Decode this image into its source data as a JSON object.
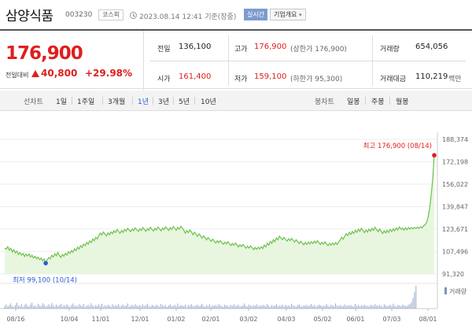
{
  "header": {
    "name": "삼양식품",
    "code": "003230",
    "market": "코스피",
    "datetime": "2023.08.14 12:41 기준(장중)",
    "realtime_label": "실시간",
    "company_label": "기업개요"
  },
  "price": {
    "current": "176,900",
    "change_label": "전일대비",
    "change": "40,800",
    "change_rate": "+29.98%"
  },
  "stats": {
    "prev_close": {
      "label": "전일",
      "value": "136,100"
    },
    "open": {
      "label": "시가",
      "value": "161,400"
    },
    "high": {
      "label": "고가",
      "value": "176,900",
      "sub": "(상한가 176,900)"
    },
    "low": {
      "label": "저가",
      "value": "159,100",
      "sub": "(하한가 95,300)"
    },
    "volume": {
      "label": "거래량",
      "value": "654,056"
    },
    "amount": {
      "label": "거래대금",
      "value": "110,219",
      "unit": "백만"
    }
  },
  "tabs": {
    "line_label": "선차트",
    "periods": [
      "1일",
      "1주일",
      "3개월",
      "1년",
      "3년",
      "5년",
      "10년"
    ],
    "active_period": "1년",
    "candle_label": "봉차트",
    "candles": [
      "일봉",
      "주봉",
      "월봉"
    ]
  },
  "colors": {
    "up": "#e01e1e",
    "line": "#6cc24a",
    "fill": "#e9f6df",
    "low_marker": "#2a5bd7",
    "high_marker": "#e01e1e"
  },
  "chart_data": {
    "type": "area",
    "ylim": [
      91320,
      188374
    ],
    "y_ticks": [
      188374,
      172198,
      156022,
      139847,
      123671,
      107496,
      91320
    ],
    "y_tick_labels": [
      "188,374",
      "172,198",
      "156,022",
      "139,847",
      "123,671",
      "107,496",
      "91,320"
    ],
    "x_tick_labels": [
      "08/16",
      "10/04",
      "11/01",
      "12/01",
      "01/02",
      "02/01",
      "03/02",
      "04/03",
      "05/02",
      "06/01",
      "07/03",
      "08/01"
    ],
    "high_annotation": "최고 176,900 (08/14)",
    "low_annotation": "최저 99,100 (10/14)",
    "volume_legend": "거래량",
    "series": [
      {
        "values": [
          110000,
          109200,
          111000,
          108500,
          109800,
          107200,
          108800,
          106500,
          107800,
          105400,
          106800,
          104900,
          106200,
          103800,
          105600,
          104200,
          105800,
          103500,
          104800,
          102800,
          104100,
          102300,
          103500,
          101600,
          102800,
          100900,
          102100,
          99100,
          101500,
          103200,
          102200,
          104800,
          103600,
          105900,
          104500,
          106800,
          104600,
          103200,
          105400,
          104100,
          106200,
          105000,
          107300,
          106200,
          108200,
          107000,
          109400,
          108200,
          110600,
          109300,
          111800,
          110500,
          112900,
          111700,
          114100,
          112800,
          115200,
          114000,
          116500,
          115300,
          117700,
          116500,
          118900,
          120800,
          119400,
          121600,
          120200,
          118800,
          120900,
          119500,
          121600,
          120400,
          122500,
          121200,
          123400,
          122000,
          120600,
          122700,
          121300,
          123500,
          122200,
          124300,
          123000,
          121800,
          123800,
          122500,
          124600,
          123300,
          121900,
          123900,
          122700,
          124800,
          123400,
          122100,
          124000,
          122800,
          124900,
          123500,
          122200,
          124300,
          123000,
          125100,
          123800,
          122400,
          124400,
          123200,
          125300,
          124000,
          122700,
          124700,
          123400,
          125500,
          124200,
          122900,
          124900,
          123600,
          125700,
          124300,
          122800,
          120700,
          122600,
          121200,
          123100,
          121600,
          119600,
          121500,
          120000,
          118400,
          120200,
          118800,
          117100,
          118900,
          117400,
          115900,
          117600,
          116200,
          114800,
          116400,
          115000,
          113600,
          115200,
          113800,
          115400,
          114000,
          112700,
          114300,
          112900,
          114600,
          113200,
          111800,
          113400,
          112000,
          113600,
          112200,
          110800,
          112400,
          111000,
          112600,
          111200,
          109800,
          111400,
          110000,
          111600,
          110200,
          108800,
          110400,
          109000,
          110600,
          109300,
          111000,
          109600,
          112200,
          110800,
          113500,
          112100,
          114800,
          113400,
          116000,
          114600,
          117300,
          115900,
          118600,
          117200,
          116000,
          117700,
          116300,
          115000,
          116700,
          115300,
          117000,
          115600,
          114300,
          116000,
          114600,
          113300,
          115000,
          113600,
          112300,
          114000,
          112600,
          114300,
          112900,
          114600,
          113200,
          115000,
          113600,
          115300,
          113900,
          112500,
          114200,
          112800,
          114500,
          113100,
          111700,
          113400,
          112000,
          113700,
          112300,
          114000,
          112600,
          114300,
          115800,
          117900,
          116300,
          118500,
          120400,
          119000,
          121300,
          119800,
          122000,
          120500,
          122800,
          121300,
          123600,
          122000,
          124300,
          122700,
          121100,
          123000,
          121500,
          123700,
          122100,
          124300,
          122700,
          125000,
          123400,
          121800,
          123700,
          122100,
          120500,
          122500,
          120900,
          122800,
          121200,
          123500,
          121900,
          124000,
          122400,
          124600,
          123000,
          125200,
          123600,
          124400,
          123000,
          124600,
          123200,
          124800,
          123600,
          124800,
          123800,
          124900,
          124000,
          125100,
          124200,
          125300,
          124500,
          126000,
          126900,
          128500,
          132500,
          139000,
          148000,
          160000,
          176900
        ]
      }
    ],
    "volume": [
      12,
      18,
      9,
      14,
      22,
      11,
      8,
      16,
      25,
      13,
      10,
      19,
      7,
      15,
      21,
      12,
      9,
      17,
      26,
      11,
      14,
      8,
      20,
      13,
      10,
      23,
      16,
      9,
      12,
      18,
      11,
      24,
      14,
      8,
      17,
      10,
      13,
      21,
      9,
      15,
      12,
      19,
      11,
      8,
      16,
      22,
      10,
      13,
      9,
      18,
      14,
      11,
      20,
      8,
      12,
      17,
      10,
      23,
      13,
      9,
      15,
      11,
      18,
      12,
      21,
      9,
      14,
      10,
      16,
      13,
      8,
      19,
      11,
      15,
      12,
      20,
      9,
      13,
      17,
      10,
      14,
      22,
      8,
      12,
      16,
      11,
      19,
      13,
      10,
      15,
      9,
      18,
      12,
      14,
      21,
      11,
      8,
      16,
      13,
      10,
      17,
      12,
      9,
      20,
      14,
      11,
      15,
      8,
      13,
      18,
      10,
      12,
      16,
      9,
      22,
      11,
      14,
      13,
      10,
      17,
      8,
      15,
      12,
      19,
      11,
      9,
      14,
      16,
      10,
      13,
      21,
      12,
      8,
      15,
      11,
      18,
      9,
      14,
      12,
      16,
      10,
      20,
      13,
      11,
      8,
      17,
      14,
      12,
      9,
      15,
      11,
      19,
      10,
      13,
      16,
      8,
      12,
      14,
      22,
      11,
      9,
      17,
      13,
      10,
      15,
      12,
      18,
      9,
      14,
      11,
      16,
      13,
      10,
      20,
      12,
      8,
      15,
      11,
      14,
      19,
      10,
      13,
      12,
      17,
      9,
      16,
      11,
      14,
      10,
      21,
      13,
      12,
      8,
      15,
      18,
      11,
      9,
      14,
      12,
      16,
      10,
      13,
      20,
      11,
      15,
      9,
      12,
      17,
      14,
      10,
      13,
      11,
      19,
      12,
      8,
      16,
      14,
      10,
      22,
      13,
      11,
      15,
      9,
      12,
      18,
      10,
      14,
      13,
      16,
      11,
      9,
      20,
      12,
      15,
      10,
      14,
      13,
      17,
      11,
      12,
      9,
      16,
      14,
      10,
      19,
      13,
      11,
      15,
      12,
      8,
      18,
      14,
      10,
      13,
      16,
      11,
      21,
      12,
      9,
      15,
      13,
      10,
      17,
      14,
      11,
      12,
      16,
      20,
      28,
      45,
      70,
      98
    ]
  }
}
